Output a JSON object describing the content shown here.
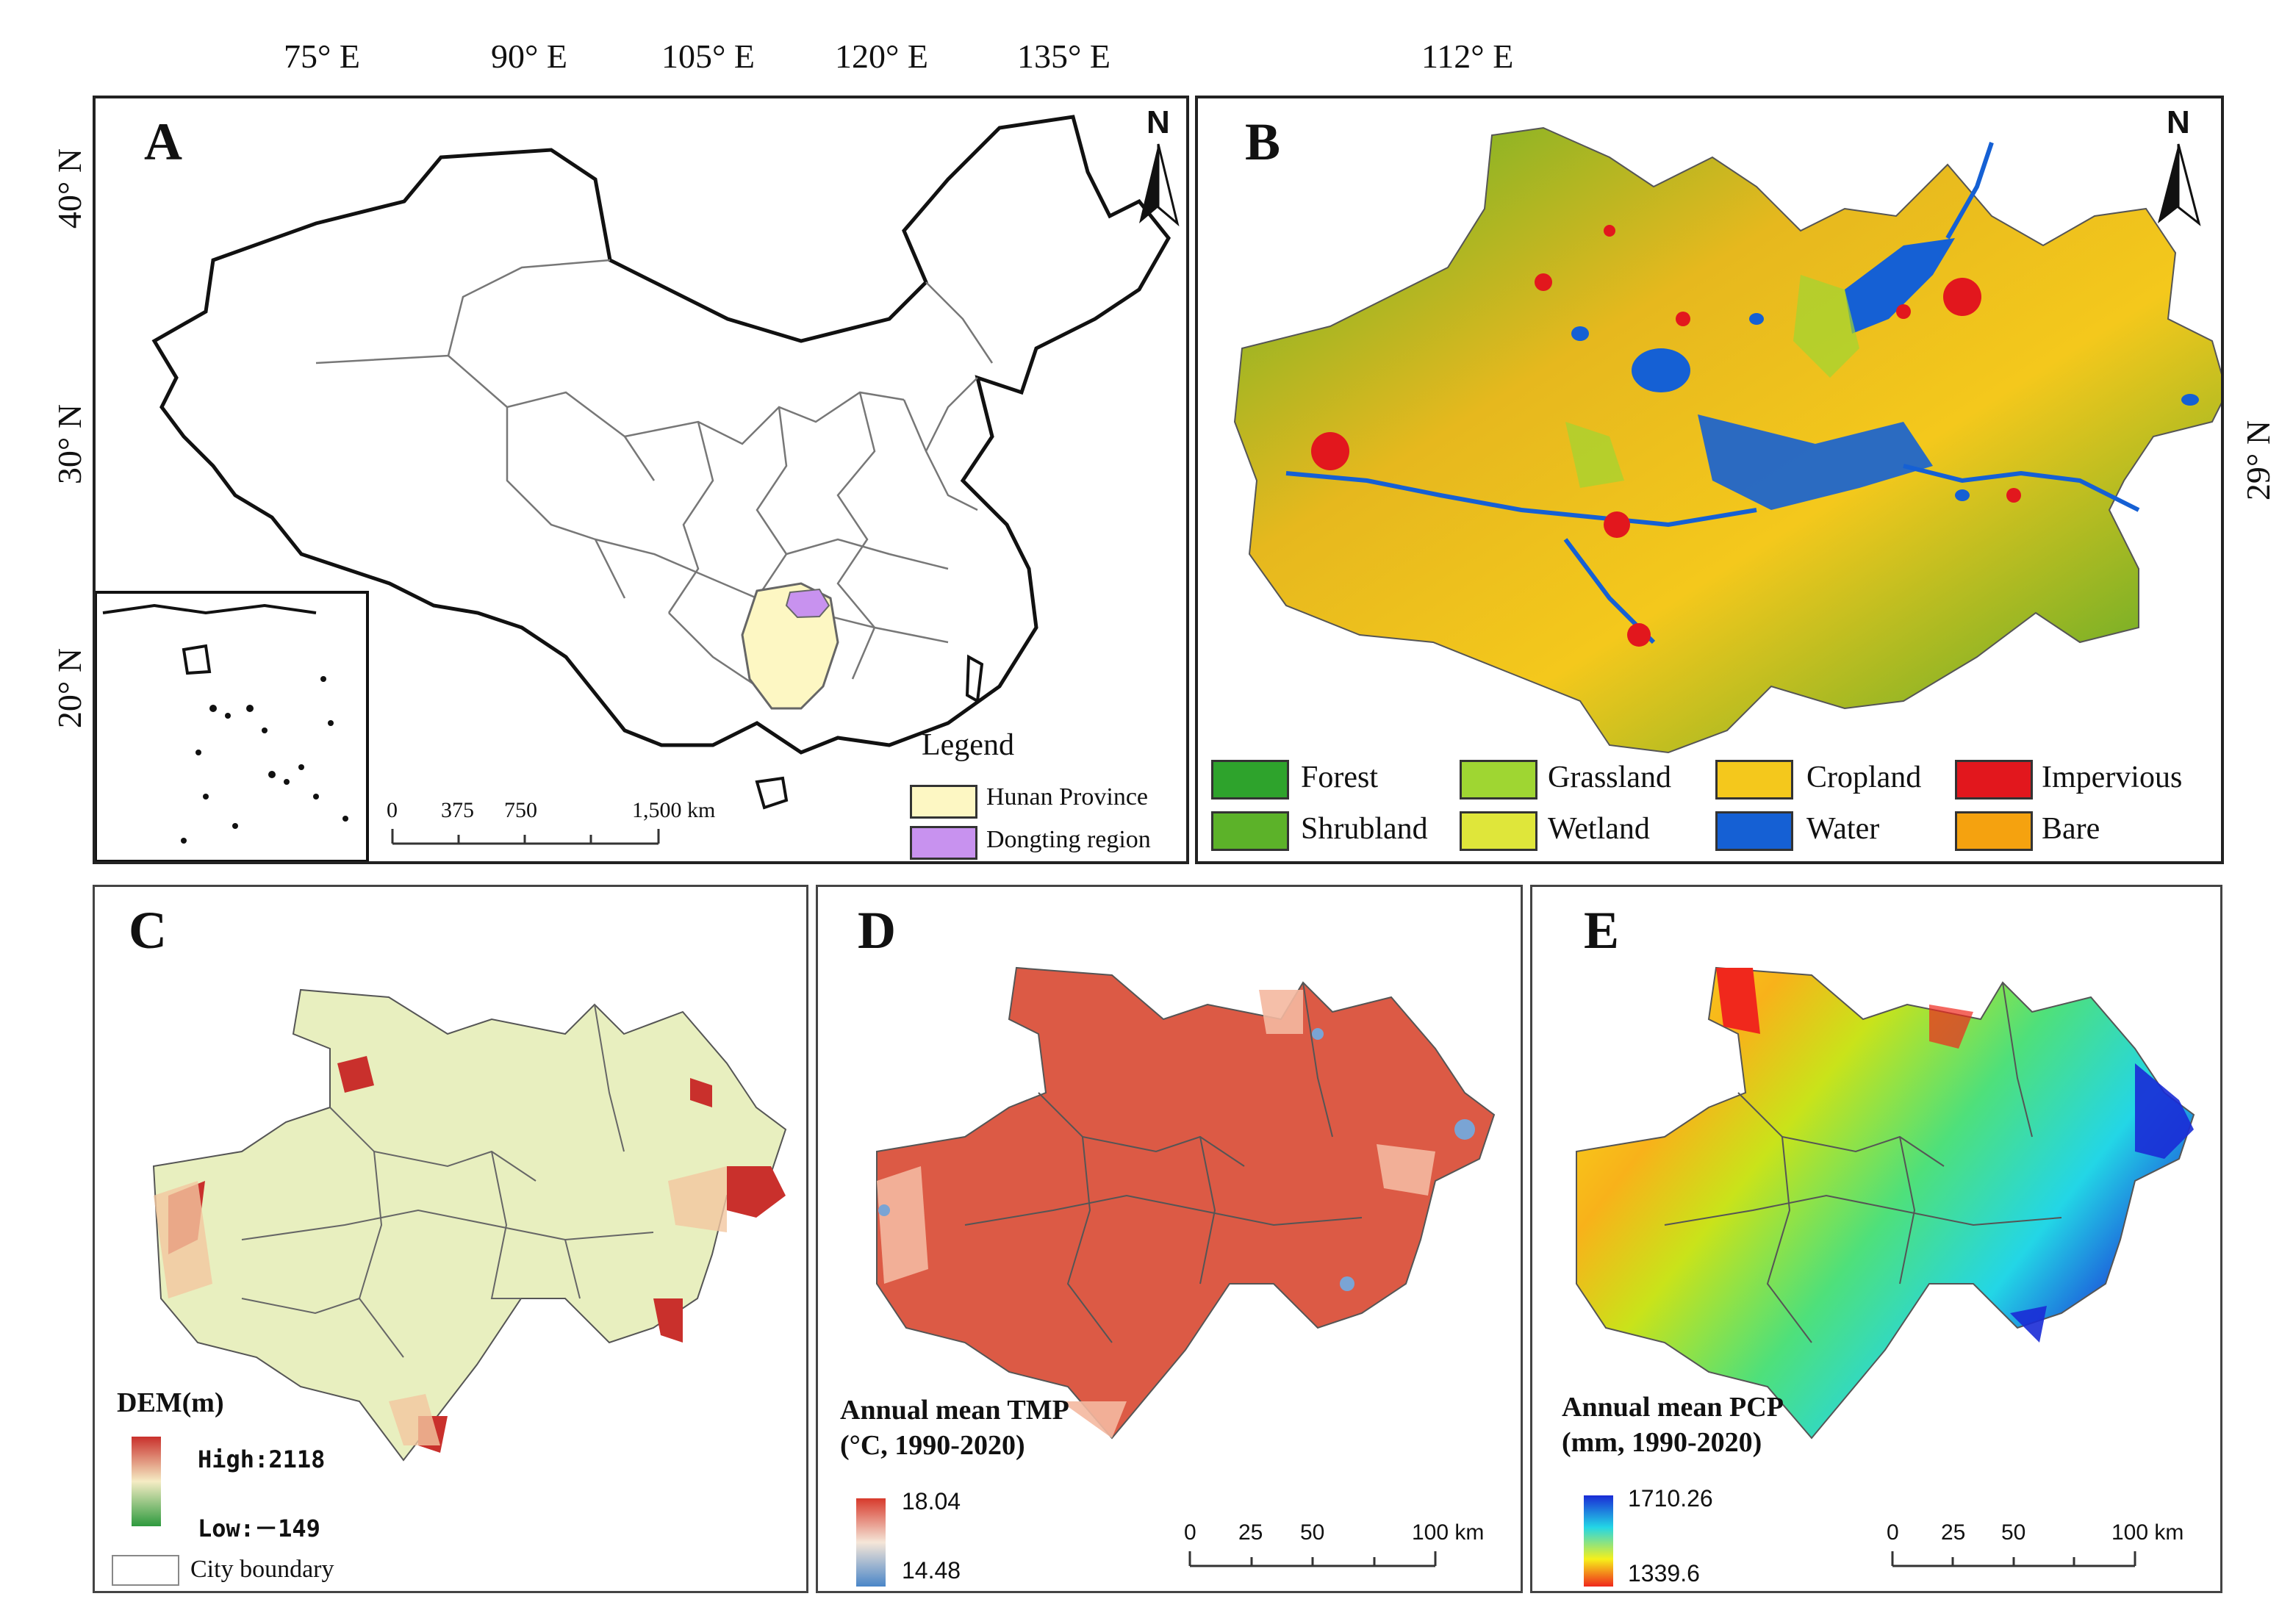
{
  "top_axis": {
    "panel_a_lon": [
      "75° E",
      "90° E",
      "105° E",
      "120° E",
      "135° E"
    ],
    "panel_a_lat": [
      "40° N",
      "30° N",
      "20° N"
    ],
    "panel_b_lon": [
      "112° E"
    ],
    "panel_b_lat": [
      "29° N"
    ]
  },
  "panels": {
    "a": {
      "label": "A",
      "north": "N",
      "scale": {
        "ticks": [
          "0",
          "375",
          "750",
          "1,500 km"
        ]
      },
      "legend": {
        "title": "Legend",
        "items": [
          {
            "label": "Hunan Province",
            "color": "#fdf7c3"
          },
          {
            "label": "Dongting region",
            "color": "#c892ef"
          }
        ]
      }
    },
    "b": {
      "label": "B",
      "north": "N",
      "legend": [
        {
          "label": "Forest",
          "color": "#2ea32c"
        },
        {
          "label": "Grassland",
          "color": "#9fd632"
        },
        {
          "label": "Cropland",
          "color": "#f4c81c"
        },
        {
          "label": "Impervious",
          "color": "#e2171d"
        },
        {
          "label": "Shrubland",
          "color": "#5cb229"
        },
        {
          "label": "Wetland",
          "color": "#dfe63a"
        },
        {
          "label": "Water",
          "color": "#1560d4"
        },
        {
          "label": "Bare",
          "color": "#f5a20f"
        }
      ]
    },
    "c": {
      "label": "C",
      "legend_title": "DEM(m)",
      "high": "High:2118",
      "low": "Low:－149",
      "boundary_label": "City boundary",
      "colors": {
        "high": "#c9302c",
        "mid": "#f5ecc4",
        "low": "#2e9a3e"
      }
    },
    "d": {
      "label": "D",
      "legend_title_1": "Annual mean TMP",
      "legend_title_2": "(°C, 1990-2020)",
      "high": "18.04",
      "low": "14.48",
      "scale": {
        "ticks": [
          "0",
          "25",
          "50",
          "100 km"
        ]
      },
      "colors": {
        "high": "#d73a2c",
        "mid": "#f5e6d8",
        "low": "#4a86c8"
      }
    },
    "e": {
      "label": "E",
      "legend_title_1": "Annual mean PCP",
      "legend_title_2": "(mm, 1990-2020)",
      "high": "1710.26",
      "low": "1339.6",
      "scale": {
        "ticks": [
          "0",
          "25",
          "50",
          "100 km"
        ]
      },
      "colors": {
        "high": "#1a2bd6",
        "mid1": "#23d6e6",
        "mid2": "#f6f01a",
        "low": "#f0281c"
      }
    }
  }
}
